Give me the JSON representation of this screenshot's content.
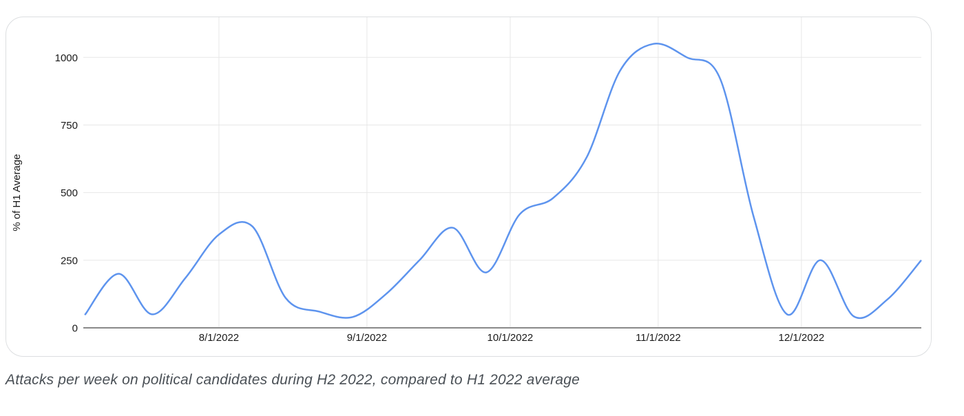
{
  "caption": "Attacks per week on political candidates during H2 2022, compared to H1 2022 average",
  "chart_data": {
    "type": "line",
    "title": "",
    "xlabel": "",
    "ylabel": "% of H1 Average",
    "x": [
      "7/4/2022",
      "7/11/2022",
      "7/18/2022",
      "7/25/2022",
      "8/1/2022",
      "8/8/2022",
      "8/15/2022",
      "8/22/2022",
      "8/29/2022",
      "9/5/2022",
      "9/12/2022",
      "9/19/2022",
      "9/26/2022",
      "10/3/2022",
      "10/10/2022",
      "10/17/2022",
      "10/24/2022",
      "10/31/2022",
      "11/7/2022",
      "11/14/2022",
      "11/21/2022",
      "11/28/2022",
      "12/5/2022",
      "12/12/2022",
      "12/19/2022",
      "12/26/2022"
    ],
    "values": [
      50,
      200,
      50,
      185,
      345,
      375,
      110,
      60,
      40,
      125,
      250,
      370,
      205,
      420,
      480,
      630,
      950,
      1050,
      1000,
      920,
      410,
      50,
      250,
      42,
      105,
      248
    ],
    "y_ticks": [
      0,
      250,
      500,
      750,
      1000
    ],
    "x_tick_labels": [
      "8/1/2022",
      "9/1/2022",
      "10/1/2022",
      "11/1/2022",
      "12/1/2022"
    ],
    "ylim": [
      0,
      1148
    ],
    "grid": true,
    "legend": "none",
    "smooth": true,
    "line_color": "#5e94ee",
    "gridline_color": "#e7e7e7",
    "axis_line_color": "#898989",
    "label_color": "#1a1a1a"
  }
}
